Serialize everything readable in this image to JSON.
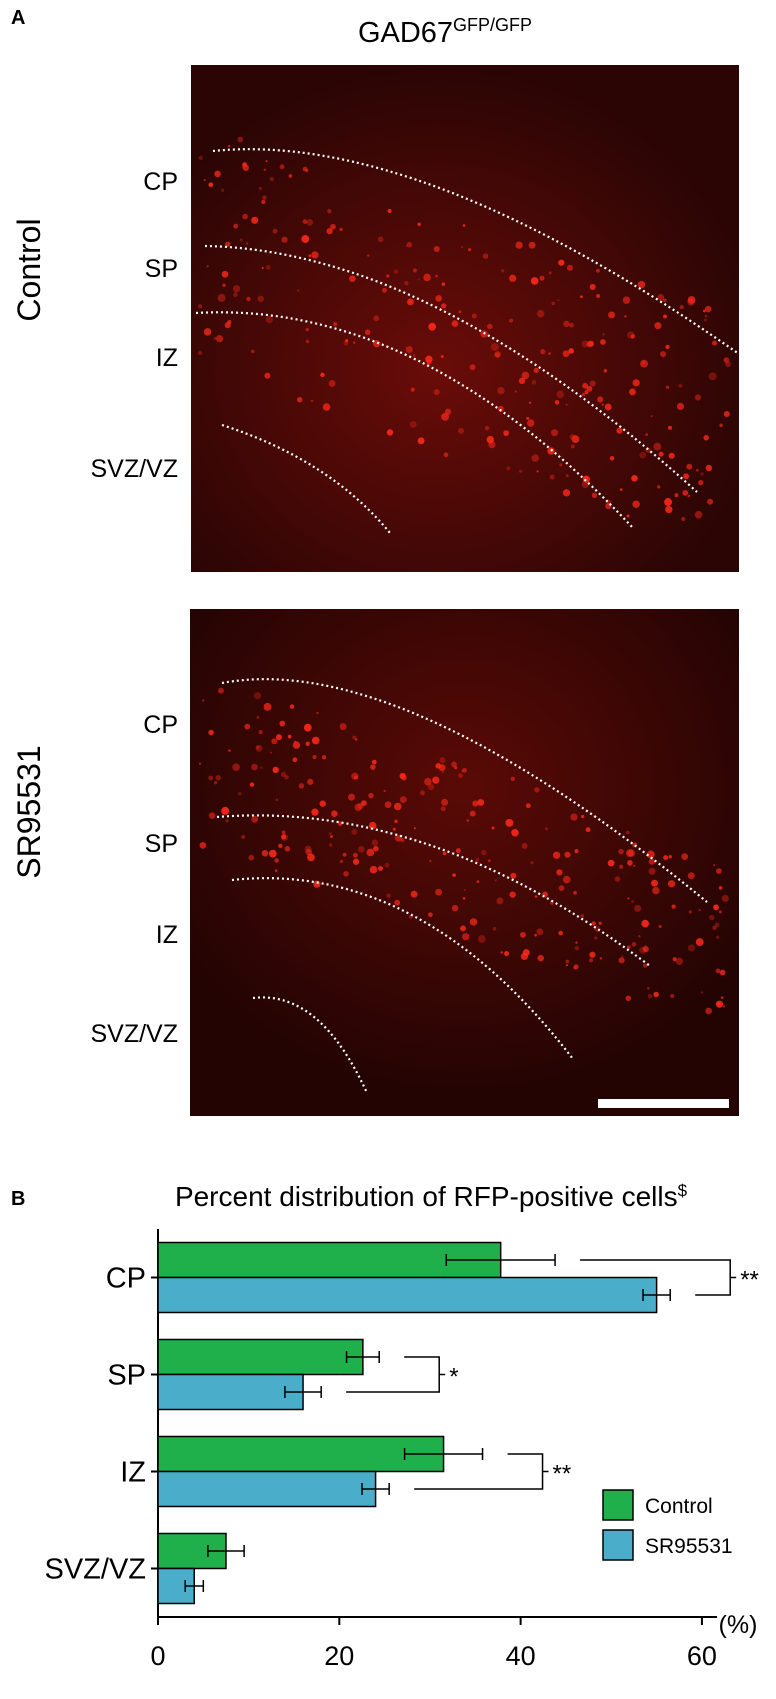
{
  "panel_a": {
    "label": "A",
    "title": "GAD67",
    "title_sup": "GFP/GFP",
    "rows": [
      {
        "condition": "Control",
        "regions": [
          "CP",
          "SP",
          "IZ",
          "SVZ/VZ"
        ]
      },
      {
        "condition": "SR95531",
        "regions": [
          "CP",
          "SP",
          "IZ",
          "SVZ/VZ"
        ]
      }
    ]
  },
  "chart_data": {
    "type": "hbar",
    "label": "B",
    "title": "Percent distribution of RFP-positive cells",
    "title_sup": "$",
    "xlabel": "(%)",
    "categories": [
      "CP",
      "SP",
      "IZ",
      "SVZ/VZ"
    ],
    "series": [
      {
        "name": "Control",
        "color": "#1fb04c",
        "values": [
          37.8,
          22.6,
          31.5,
          7.5
        ],
        "errors": [
          6,
          1.8,
          4.3,
          2
        ]
      },
      {
        "name": "SR95531",
        "color": "#4aaecb",
        "values": [
          55,
          16,
          24,
          4
        ],
        "errors": [
          1.5,
          2,
          1.5,
          1
        ]
      }
    ],
    "significance": [
      "**",
      "*",
      "**",
      null
    ],
    "xlim": [
      0,
      61
    ],
    "xticks": [
      0,
      20,
      40,
      60
    ],
    "legend": "lower right"
  }
}
